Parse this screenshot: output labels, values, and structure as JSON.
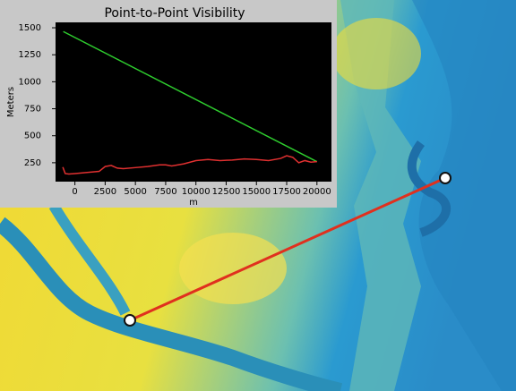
{
  "chart_data": {
    "type": "line",
    "title": "Point-to-Point Visibility",
    "x_label": "m",
    "y_label": "Meters",
    "xlim": [
      -1600,
      21200
    ],
    "ylim": [
      75,
      1550
    ],
    "xticks": [
      0,
      2500,
      5000,
      7500,
      10000,
      12500,
      15000,
      17500,
      20000
    ],
    "yticks": [
      250,
      500,
      750,
      1000,
      1250,
      1500
    ],
    "series": [
      {
        "color": "#2ecc2e",
        "x": [
          -960,
          20000
        ],
        "values": [
          1465,
          260
        ]
      },
      {
        "color": "#e03030",
        "x": [
          -1000,
          -800,
          -500,
          0,
          1000,
          2000,
          2500,
          3000,
          3500,
          4000,
          5000,
          6000,
          7000,
          7500,
          8000,
          9000,
          10000,
          11000,
          12000,
          13000,
          14000,
          15000,
          16000,
          17000,
          17500,
          18000,
          18500,
          19000,
          19500,
          20000
        ],
        "values": [
          210,
          150,
          145,
          150,
          160,
          170,
          215,
          225,
          200,
          195,
          205,
          215,
          230,
          230,
          220,
          240,
          270,
          280,
          270,
          275,
          285,
          280,
          270,
          290,
          315,
          300,
          250,
          270,
          255,
          260
        ]
      }
    ]
  }
}
